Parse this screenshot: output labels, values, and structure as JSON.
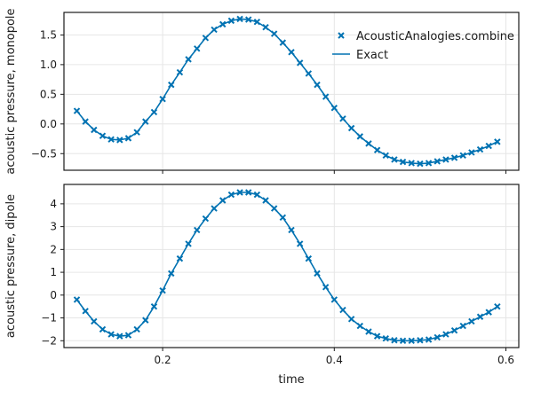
{
  "chart_data": [
    {
      "type": "line",
      "ylabel": "acoustic pressure, monopole",
      "xlim": [
        0.085,
        0.615
      ],
      "ylim": [
        -0.78,
        1.88
      ],
      "xticks": [
        0.2,
        0.4,
        0.6
      ],
      "yticks": [
        -0.5,
        0.0,
        0.5,
        1.0,
        1.5
      ],
      "ytick_labels": [
        "−0.5",
        "0.0",
        "0.5",
        "1.0",
        "1.5"
      ],
      "grid": true,
      "legend": {
        "placement": "top-right",
        "entries": [
          "AcousticAnalogies.combine",
          "Exact"
        ]
      },
      "series": [
        {
          "name": "AcousticAnalogies.combine",
          "marker": "x",
          "x": [
            0.1,
            0.11,
            0.12,
            0.13,
            0.14,
            0.15,
            0.16,
            0.17,
            0.18,
            0.19,
            0.2,
            0.21,
            0.22,
            0.23,
            0.24,
            0.25,
            0.26,
            0.27,
            0.28,
            0.29,
            0.3,
            0.31,
            0.32,
            0.33,
            0.34,
            0.35,
            0.36,
            0.37,
            0.38,
            0.39,
            0.4,
            0.41,
            0.42,
            0.43,
            0.44,
            0.45,
            0.46,
            0.47,
            0.48,
            0.49,
            0.5,
            0.51,
            0.52,
            0.53,
            0.54,
            0.55,
            0.56,
            0.57,
            0.58,
            0.59
          ],
          "y": [
            0.22,
            0.04,
            -0.1,
            -0.2,
            -0.26,
            -0.27,
            -0.24,
            -0.14,
            0.04,
            0.2,
            0.42,
            0.66,
            0.87,
            1.09,
            1.27,
            1.45,
            1.59,
            1.68,
            1.74,
            1.77,
            1.76,
            1.72,
            1.63,
            1.52,
            1.37,
            1.21,
            1.03,
            0.85,
            0.66,
            0.46,
            0.27,
            0.09,
            -0.07,
            -0.21,
            -0.33,
            -0.44,
            -0.53,
            -0.6,
            -0.64,
            -0.66,
            -0.67,
            -0.66,
            -0.63,
            -0.6,
            -0.57,
            -0.53,
            -0.48,
            -0.43,
            -0.37,
            -0.3
          ]
        },
        {
          "name": "Exact",
          "marker": "none",
          "x": [
            0.1,
            0.11,
            0.12,
            0.13,
            0.14,
            0.15,
            0.16,
            0.17,
            0.18,
            0.19,
            0.2,
            0.21,
            0.22,
            0.23,
            0.24,
            0.25,
            0.26,
            0.27,
            0.28,
            0.29,
            0.3,
            0.31,
            0.32,
            0.33,
            0.34,
            0.35,
            0.36,
            0.37,
            0.38,
            0.39,
            0.4,
            0.41,
            0.42,
            0.43,
            0.44,
            0.45,
            0.46,
            0.47,
            0.48,
            0.49,
            0.5,
            0.51,
            0.52,
            0.53,
            0.54,
            0.55,
            0.56,
            0.57,
            0.58,
            0.59
          ],
          "y": [
            0.22,
            0.04,
            -0.1,
            -0.2,
            -0.26,
            -0.27,
            -0.24,
            -0.14,
            0.04,
            0.2,
            0.42,
            0.66,
            0.87,
            1.09,
            1.27,
            1.45,
            1.59,
            1.68,
            1.74,
            1.77,
            1.76,
            1.72,
            1.63,
            1.52,
            1.37,
            1.21,
            1.03,
            0.85,
            0.66,
            0.46,
            0.27,
            0.09,
            -0.07,
            -0.21,
            -0.33,
            -0.44,
            -0.53,
            -0.6,
            -0.64,
            -0.66,
            -0.67,
            -0.66,
            -0.63,
            -0.6,
            -0.57,
            -0.53,
            -0.48,
            -0.43,
            -0.37,
            -0.3
          ]
        }
      ]
    },
    {
      "type": "line",
      "xlabel": "time",
      "ylabel": "acoustic pressure, dipole",
      "xlim": [
        0.085,
        0.615
      ],
      "ylim": [
        -2.3,
        4.85
      ],
      "xticks": [
        0.2,
        0.4,
        0.6
      ],
      "xtick_labels": [
        "0.2",
        "0.4",
        "0.6"
      ],
      "yticks": [
        -2,
        -1,
        0,
        1,
        2,
        3,
        4
      ],
      "ytick_labels": [
        "−2",
        "−1",
        "0",
        "1",
        "2",
        "3",
        "4"
      ],
      "grid": true,
      "series": [
        {
          "name": "AcousticAnalogies.combine",
          "marker": "x",
          "x": [
            0.1,
            0.11,
            0.12,
            0.13,
            0.14,
            0.15,
            0.16,
            0.17,
            0.18,
            0.19,
            0.2,
            0.21,
            0.22,
            0.23,
            0.24,
            0.25,
            0.26,
            0.27,
            0.28,
            0.29,
            0.3,
            0.31,
            0.32,
            0.33,
            0.34,
            0.35,
            0.36,
            0.37,
            0.38,
            0.39,
            0.4,
            0.41,
            0.42,
            0.43,
            0.44,
            0.45,
            0.46,
            0.47,
            0.48,
            0.49,
            0.5,
            0.51,
            0.52,
            0.53,
            0.54,
            0.55,
            0.56,
            0.57,
            0.58,
            0.59
          ],
          "y": [
            -0.2,
            -0.7,
            -1.15,
            -1.5,
            -1.72,
            -1.8,
            -1.76,
            -1.5,
            -1.1,
            -0.5,
            0.2,
            0.95,
            1.6,
            2.25,
            2.85,
            3.35,
            3.8,
            4.15,
            4.4,
            4.5,
            4.5,
            4.4,
            4.15,
            3.8,
            3.4,
            2.85,
            2.25,
            1.6,
            0.95,
            0.35,
            -0.2,
            -0.65,
            -1.05,
            -1.35,
            -1.6,
            -1.8,
            -1.9,
            -1.98,
            -2.0,
            -2.0,
            -1.98,
            -1.95,
            -1.85,
            -1.72,
            -1.55,
            -1.35,
            -1.15,
            -0.95,
            -0.75,
            -0.5
          ]
        },
        {
          "name": "Exact",
          "marker": "none",
          "x": [
            0.1,
            0.11,
            0.12,
            0.13,
            0.14,
            0.15,
            0.16,
            0.17,
            0.18,
            0.19,
            0.2,
            0.21,
            0.22,
            0.23,
            0.24,
            0.25,
            0.26,
            0.27,
            0.28,
            0.29,
            0.3,
            0.31,
            0.32,
            0.33,
            0.34,
            0.35,
            0.36,
            0.37,
            0.38,
            0.39,
            0.4,
            0.41,
            0.42,
            0.43,
            0.44,
            0.45,
            0.46,
            0.47,
            0.48,
            0.49,
            0.5,
            0.51,
            0.52,
            0.53,
            0.54,
            0.55,
            0.56,
            0.57,
            0.58,
            0.59
          ],
          "y": [
            -0.2,
            -0.7,
            -1.15,
            -1.5,
            -1.72,
            -1.8,
            -1.76,
            -1.5,
            -1.1,
            -0.5,
            0.2,
            0.95,
            1.6,
            2.25,
            2.85,
            3.35,
            3.8,
            4.15,
            4.4,
            4.5,
            4.5,
            4.4,
            4.15,
            3.8,
            3.4,
            2.85,
            2.25,
            1.6,
            0.95,
            0.35,
            -0.2,
            -0.65,
            -1.05,
            -1.35,
            -1.6,
            -1.8,
            -1.9,
            -1.98,
            -2.0,
            -2.0,
            -1.98,
            -1.95,
            -1.85,
            -1.72,
            -1.55,
            -1.35,
            -1.15,
            -0.95,
            -0.75,
            -0.5
          ]
        }
      ]
    }
  ],
  "colors": {
    "series": "#0072b2",
    "frame": "#1a1a1a",
    "grid": "#e6e6e6"
  }
}
